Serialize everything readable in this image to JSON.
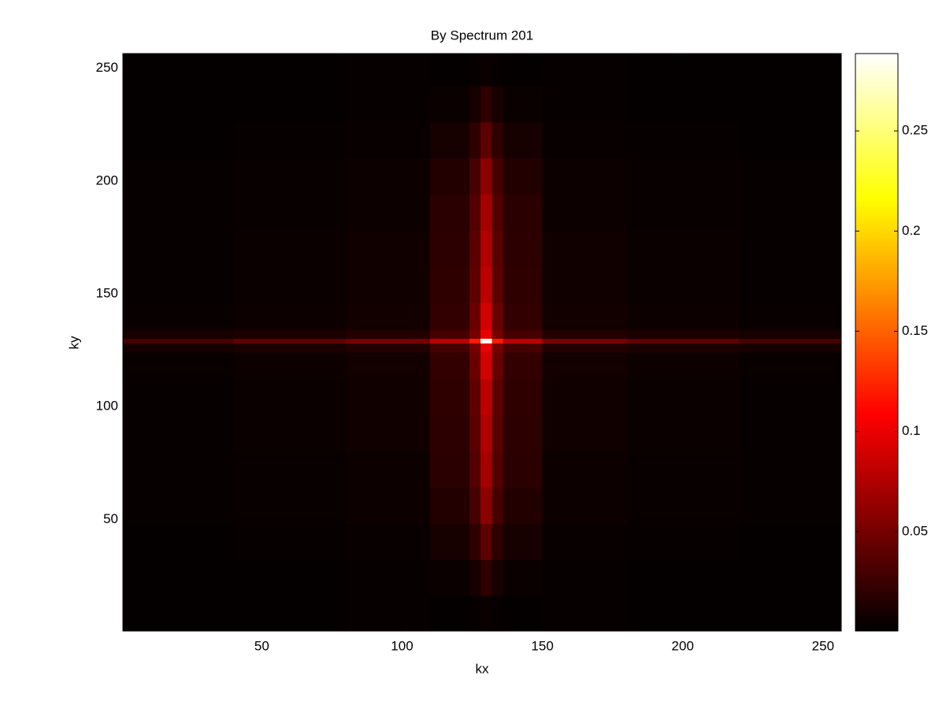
{
  "chart_data": {
    "type": "heatmap",
    "title": "By Spectrum 201",
    "xlabel": "kx",
    "ylabel": "ky",
    "colormap": "hot",
    "xedges": [
      0.5,
      40,
      80,
      110,
      124,
      128,
      132,
      136,
      150,
      180,
      220,
      256.5
    ],
    "yedges": [
      0.5,
      16,
      32,
      48,
      64,
      80,
      96,
      112,
      124,
      128,
      130,
      134,
      146,
      162,
      178,
      194,
      210,
      226,
      242,
      256.5
    ],
    "values": [
      [
        0.002,
        0.002,
        0.003,
        0.002,
        0.003,
        0.005,
        0.003,
        0.002,
        0.003,
        0.002,
        0.002
      ],
      [
        0.002,
        0.002,
        0.003,
        0.005,
        0.01,
        0.02,
        0.01,
        0.005,
        0.003,
        0.002,
        0.002
      ],
      [
        0.002,
        0.003,
        0.004,
        0.01,
        0.02,
        0.04,
        0.02,
        0.01,
        0.004,
        0.003,
        0.002
      ],
      [
        0.003,
        0.004,
        0.006,
        0.015,
        0.03,
        0.06,
        0.03,
        0.015,
        0.006,
        0.004,
        0.003
      ],
      [
        0.003,
        0.004,
        0.006,
        0.018,
        0.035,
        0.07,
        0.035,
        0.018,
        0.006,
        0.004,
        0.003
      ],
      [
        0.003,
        0.005,
        0.007,
        0.019,
        0.038,
        0.075,
        0.038,
        0.019,
        0.007,
        0.005,
        0.003
      ],
      [
        0.003,
        0.005,
        0.007,
        0.02,
        0.04,
        0.08,
        0.04,
        0.02,
        0.007,
        0.005,
        0.003
      ],
      [
        0.004,
        0.006,
        0.008,
        0.022,
        0.045,
        0.09,
        0.045,
        0.022,
        0.008,
        0.006,
        0.004
      ],
      [
        0.01,
        0.012,
        0.015,
        0.03,
        0.05,
        0.1,
        0.05,
        0.03,
        0.015,
        0.012,
        0.01
      ],
      [
        0.03,
        0.04,
        0.05,
        0.08,
        0.12,
        0.285,
        0.12,
        0.08,
        0.05,
        0.04,
        0.03
      ],
      [
        0.01,
        0.012,
        0.015,
        0.03,
        0.05,
        0.1,
        0.05,
        0.03,
        0.015,
        0.012,
        0.01
      ],
      [
        0.004,
        0.006,
        0.008,
        0.022,
        0.045,
        0.09,
        0.045,
        0.022,
        0.008,
        0.006,
        0.004
      ],
      [
        0.003,
        0.005,
        0.007,
        0.02,
        0.04,
        0.08,
        0.04,
        0.02,
        0.007,
        0.005,
        0.003
      ],
      [
        0.003,
        0.005,
        0.007,
        0.019,
        0.038,
        0.075,
        0.038,
        0.019,
        0.007,
        0.005,
        0.003
      ],
      [
        0.003,
        0.004,
        0.006,
        0.018,
        0.035,
        0.07,
        0.035,
        0.018,
        0.006,
        0.004,
        0.003
      ],
      [
        0.003,
        0.004,
        0.006,
        0.015,
        0.03,
        0.06,
        0.03,
        0.015,
        0.006,
        0.004,
        0.003
      ],
      [
        0.002,
        0.003,
        0.004,
        0.01,
        0.02,
        0.04,
        0.02,
        0.01,
        0.004,
        0.003,
        0.002
      ],
      [
        0.002,
        0.002,
        0.003,
        0.005,
        0.01,
        0.02,
        0.01,
        0.005,
        0.003,
        0.002,
        0.002
      ],
      [
        0.002,
        0.002,
        0.003,
        0.002,
        0.003,
        0.005,
        0.003,
        0.002,
        0.003,
        0.002,
        0.002
      ]
    ],
    "xlim": [
      0.5,
      256.5
    ],
    "ylim": [
      0.5,
      256.5
    ],
    "xticks": [
      50,
      100,
      150,
      200,
      250
    ],
    "yticks": [
      50,
      100,
      150,
      200,
      250
    ],
    "clim": [
      0.0004,
      0.2886
    ],
    "cticks": [
      0.05,
      0.1,
      0.15,
      0.2,
      0.25
    ]
  }
}
